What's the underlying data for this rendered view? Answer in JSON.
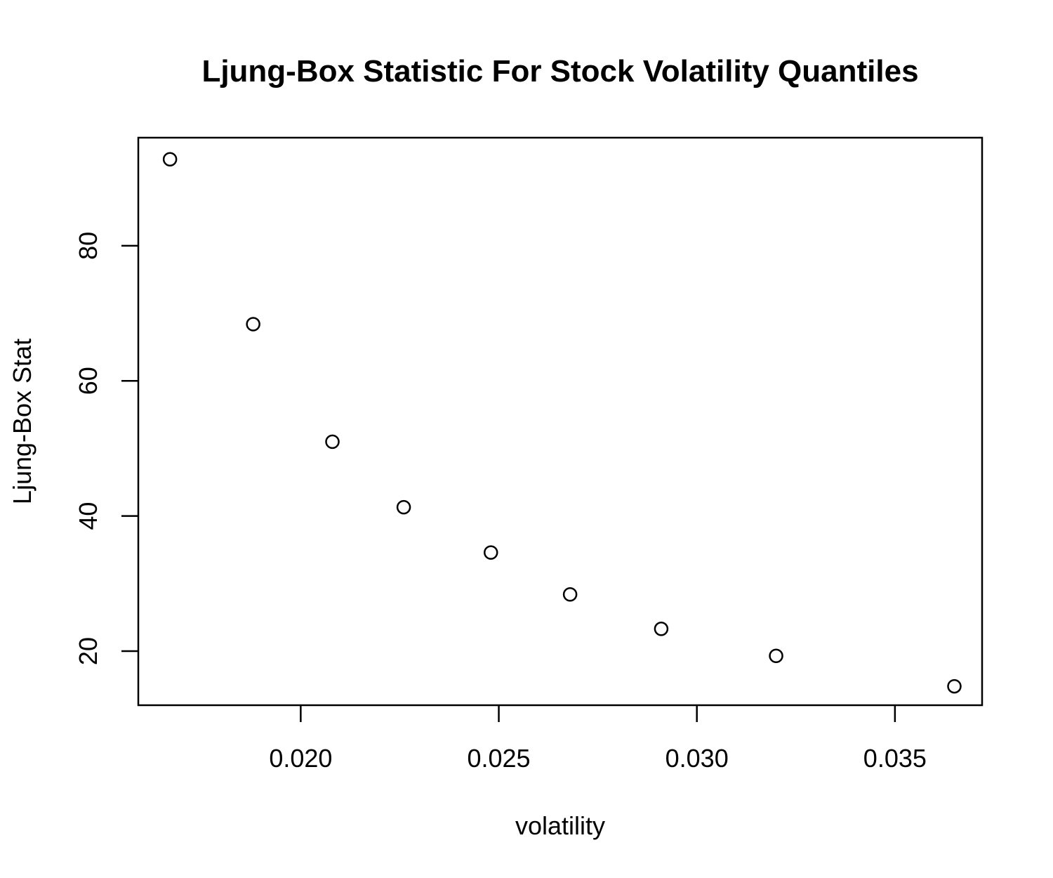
{
  "chart_data": {
    "type": "scatter",
    "title": "Ljung-Box Statistic For Stock Volatility Quantiles",
    "xlabel": "volatility",
    "ylabel": "Ljung-Box Stat",
    "xlim": [
      0.0159,
      0.0372
    ],
    "ylim": [
      12.0,
      96.0
    ],
    "x_ticks": [
      0.02,
      0.025,
      0.03,
      0.035
    ],
    "x_tick_labels": [
      "0.020",
      "0.025",
      "0.030",
      "0.035"
    ],
    "y_ticks": [
      20,
      40,
      60,
      80
    ],
    "y_tick_labels": [
      "20",
      "40",
      "60",
      "80"
    ],
    "grid": false,
    "legend": "none",
    "points": [
      {
        "x": 0.0167,
        "y": 92.8
      },
      {
        "x": 0.0188,
        "y": 68.4
      },
      {
        "x": 0.0208,
        "y": 51.0
      },
      {
        "x": 0.0226,
        "y": 41.3
      },
      {
        "x": 0.0248,
        "y": 34.6
      },
      {
        "x": 0.0268,
        "y": 28.4
      },
      {
        "x": 0.0291,
        "y": 23.3
      },
      {
        "x": 0.032,
        "y": 19.3
      },
      {
        "x": 0.0365,
        "y": 14.8
      }
    ]
  }
}
